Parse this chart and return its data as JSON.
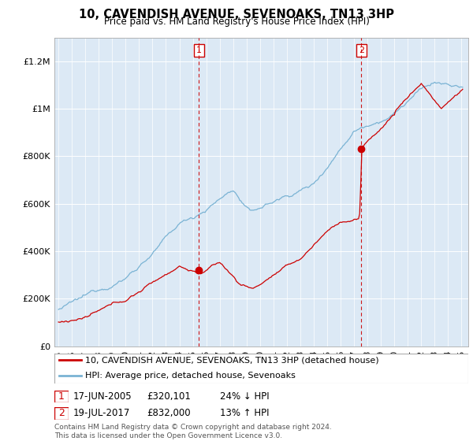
{
  "title": "10, CAVENDISH AVENUE, SEVENOAKS, TN13 3HP",
  "subtitle": "Price paid vs. HM Land Registry's House Price Index (HPI)",
  "footer": "Contains HM Land Registry data © Crown copyright and database right 2024.\nThis data is licensed under the Open Government Licence v3.0.",
  "legend_line1": "10, CAVENDISH AVENUE, SEVENOAKS, TN13 3HP (detached house)",
  "legend_line2": "HPI: Average price, detached house, Sevenoaks",
  "sale1_date": "17-JUN-2005",
  "sale1_price": "£320,101",
  "sale1_hpi": "24% ↓ HPI",
  "sale1_year": 2005.46,
  "sale1_value": 320101,
  "sale2_date": "19-JUL-2017",
  "sale2_price": "£832,000",
  "sale2_hpi": "13% ↑ HPI",
  "sale2_year": 2017.55,
  "sale2_value": 832000,
  "hpi_color": "#7ab3d4",
  "price_color": "#cc0000",
  "marker_color": "#cc0000",
  "vline_color": "#cc0000",
  "plot_bg_color": "#dce9f5",
  "ylim": [
    0,
    1300000
  ],
  "xlim_start": 1994.7,
  "xlim_end": 2025.5,
  "yticks": [
    0,
    200000,
    400000,
    600000,
    800000,
    1000000,
    1200000
  ],
  "ytick_labels": [
    "£0",
    "£200K",
    "£400K",
    "£600K",
    "£800K",
    "£1M",
    "£1.2M"
  ]
}
